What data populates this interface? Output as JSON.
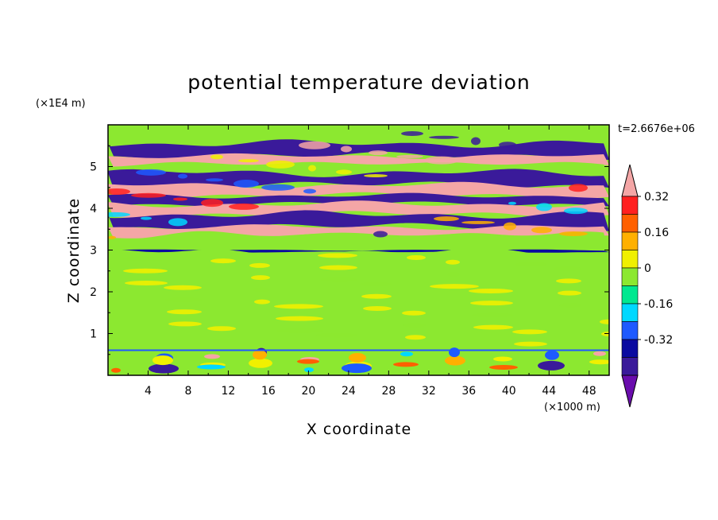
{
  "chart_data": {
    "type": "heatmap",
    "title": "potential temperature deviation",
    "xlabel": "X coordinate",
    "ylabel": "Z coordinate",
    "x_unit": "(×1000 m)",
    "y_unit": "(×1E4 m)",
    "time_label": "t=2.6676e+06",
    "x_range": [
      0,
      50
    ],
    "y_range": [
      0,
      6
    ],
    "x_ticks": [
      "4",
      "8",
      "12",
      "16",
      "20",
      "24",
      "28",
      "32",
      "36",
      "40",
      "44",
      "48"
    ],
    "y_ticks": [
      "1",
      "2",
      "3",
      "4",
      "5"
    ],
    "x_tick_values": [
      4,
      8,
      12,
      16,
      20,
      24,
      28,
      32,
      36,
      40,
      44,
      48
    ],
    "y_tick_values": [
      1,
      2,
      3,
      4,
      5
    ],
    "colorbar": {
      "labels": [
        "0.32",
        "0.16",
        "0",
        "-0.16",
        "-0.32"
      ],
      "label_values": [
        0.32,
        0.16,
        0,
        -0.16,
        -0.32
      ],
      "levels": [
        -0.4,
        -0.32,
        -0.24,
        -0.16,
        -0.08,
        0,
        0.08,
        0.16,
        0.24,
        0.32,
        0.4
      ],
      "colors": [
        "#6a0dad",
        "#3a1a9a",
        "#0a0aa0",
        "#1e5aff",
        "#00d8ff",
        "#00e890",
        "#8ce830",
        "#f0f000",
        "#ffb000",
        "#ff6000",
        "#ff2020",
        "#f4a6a6"
      ],
      "under_color": "#6a0dad",
      "over_color": "#f4a6a6"
    },
    "bands": [
      {
        "z": [
          5.55,
          5.85
        ],
        "value": 0.0
      },
      {
        "z": [
          5.25,
          5.55
        ],
        "value": -0.38
      },
      {
        "z": [
          5.05,
          5.25
        ],
        "value": 0.45
      },
      {
        "z": [
          4.85,
          5.05
        ],
        "value": 0.03
      },
      {
        "z": [
          4.55,
          4.85
        ],
        "value": -0.38
      },
      {
        "z": [
          4.3,
          4.55
        ],
        "value": 0.45
      },
      {
        "z": [
          4.1,
          4.3
        ],
        "value": -0.38
      },
      {
        "z": [
          3.85,
          4.1
        ],
        "value": 0.45
      },
      {
        "z": [
          3.55,
          3.85
        ],
        "value": -0.38
      },
      {
        "z": [
          3.35,
          3.55
        ],
        "value": 0.45
      },
      {
        "z": [
          3.0,
          3.35
        ],
        "value": 0.0
      },
      {
        "z": [
          2.95,
          3.0
        ],
        "value": -0.3
      },
      {
        "z": [
          0.6,
          2.95
        ],
        "value": 0.06
      },
      {
        "z": [
          0.0,
          0.6
        ],
        "value": 0.0
      }
    ]
  }
}
